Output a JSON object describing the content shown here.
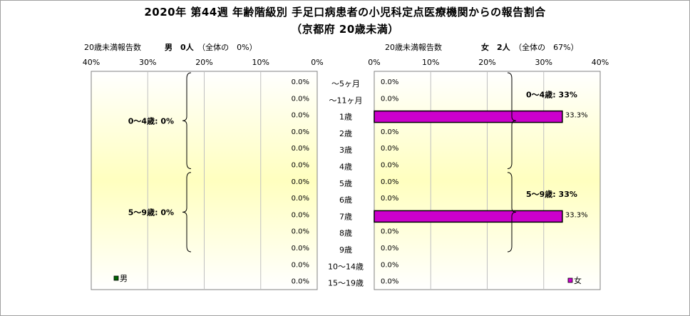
{
  "title_line1": "2020年 第44週 年齢階級別 手足口病患者の小児科定点医療機関からの報告割合",
  "title_line2": "（京都府 20歳未満）",
  "left_header": {
    "label": "20歳未満報告数",
    "gender": "男",
    "count": "0人",
    "share": "（全体の　0%）"
  },
  "right_header": {
    "label": "20歳未満報告数",
    "gender": "女",
    "count": "2人",
    "share": "（全体の　67%）"
  },
  "colors": {
    "male": "#006400",
    "female": "#cc00cc",
    "plot_center": "#ffffbf",
    "plot_edge": "#ffffff",
    "grid": "#c0c0c0"
  },
  "chart_data": {
    "type": "bar",
    "orientation": "horizontal-population-pyramid",
    "categories": [
      "～5ヶ月",
      "～11ヶ月",
      "1歳",
      "2歳",
      "3歳",
      "4歳",
      "5歳",
      "6歳",
      "7歳",
      "8歳",
      "9歳",
      "10～14歳",
      "15～19歳"
    ],
    "xlim": [
      0,
      40
    ],
    "x_ticks": [
      "0%",
      "10%",
      "20%",
      "30%",
      "40%"
    ],
    "series": [
      {
        "name": "男",
        "side": "left",
        "values": [
          0,
          0,
          0,
          0,
          0,
          0,
          0,
          0,
          0,
          0,
          0,
          0,
          0
        ],
        "labels": [
          "0.0%",
          "0.0%",
          "0.0%",
          "0.0%",
          "0.0%",
          "0.0%",
          "0.0%",
          "0.0%",
          "0.0%",
          "0.0%",
          "0.0%",
          "0.0%",
          "0.0%"
        ]
      },
      {
        "name": "女",
        "side": "right",
        "values": [
          0,
          0,
          33.3,
          0,
          0,
          0,
          0,
          0,
          33.3,
          0,
          0,
          0,
          0
        ],
        "labels": [
          "0.0%",
          "0.0%",
          "33.3%",
          "0.0%",
          "0.0%",
          "0.0%",
          "0.0%",
          "0.0%",
          "33.3%",
          "0.0%",
          "0.0%",
          "0.0%",
          "0.0%"
        ]
      }
    ],
    "groups": {
      "left": [
        {
          "label": "0～4歳: 0%",
          "from": 0,
          "to": 5
        },
        {
          "label": "5～9歳: 0%",
          "from": 6,
          "to": 10
        }
      ],
      "right": [
        {
          "label": "0～4歳: 33%",
          "from": 0,
          "to": 5
        },
        {
          "label": "5～9歳: 33%",
          "from": 6,
          "to": 10
        }
      ]
    },
    "grid": true,
    "legend": "bottom-inside"
  }
}
